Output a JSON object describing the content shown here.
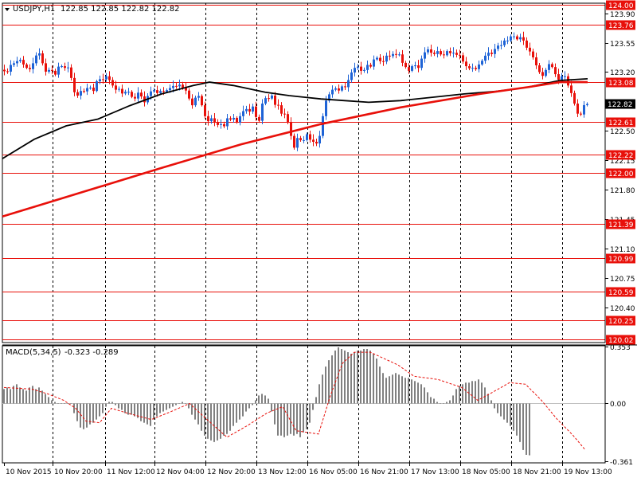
{
  "chart_data": [
    {
      "type": "candlestick",
      "title": "USDJPY,H1",
      "header_values": "122.85 122.85 122.82 122.82",
      "ylim": [
        119.98,
        124.02
      ],
      "y_ticks": [
        {
          "value": 123.9,
          "label": "123.90"
        },
        {
          "value": 123.55,
          "label": "123.55"
        },
        {
          "value": 123.2,
          "label": "123.20"
        },
        {
          "value": 122.5,
          "label": "122.50"
        },
        {
          "value": 122.15,
          "label": "122.15"
        },
        {
          "value": 121.8,
          "label": "121.80"
        },
        {
          "value": 121.45,
          "label": "121.45"
        },
        {
          "value": 121.1,
          "label": "121.10"
        },
        {
          "value": 120.75,
          "label": "120.75"
        },
        {
          "value": 120.4,
          "label": "120.40"
        }
      ],
      "levels": [
        {
          "value": 124.0,
          "label": "124.00"
        },
        {
          "value": 123.76,
          "label": "123.76"
        },
        {
          "value": 123.08,
          "label": "123.08"
        },
        {
          "value": 122.61,
          "label": "122.61"
        },
        {
          "value": 122.22,
          "label": "122.22"
        },
        {
          "value": 122.0,
          "label": "122.00"
        },
        {
          "value": 121.39,
          "label": "121.39"
        },
        {
          "value": 120.99,
          "label": "120.99"
        },
        {
          "value": 120.59,
          "label": "120.59"
        },
        {
          "value": 120.25,
          "label": "120.25"
        },
        {
          "value": 120.02,
          "label": "120.02"
        }
      ],
      "current_price": {
        "value": 122.82,
        "label": "122.82"
      },
      "close_path": [
        [
          0,
          123.25
        ],
        [
          4,
          123.22
        ],
        [
          8,
          123.18
        ],
        [
          12,
          123.28
        ],
        [
          16,
          123.3
        ],
        [
          20,
          123.32
        ],
        [
          24,
          123.36
        ],
        [
          28,
          123.3
        ],
        [
          32,
          123.26
        ],
        [
          36,
          123.22
        ],
        [
          40,
          123.28
        ],
        [
          44,
          123.38
        ],
        [
          48,
          123.45
        ],
        [
          52,
          123.34
        ],
        [
          56,
          123.2
        ],
        [
          60,
          123.22
        ],
        [
          64,
          123.24
        ],
        [
          68,
          123.14
        ],
        [
          72,
          123.26
        ],
        [
          76,
          123.28
        ],
        [
          80,
          123.24
        ],
        [
          84,
          123.28
        ],
        [
          88,
          123.18
        ],
        [
          92,
          122.98
        ],
        [
          96,
          122.9
        ],
        [
          100,
          122.98
        ],
        [
          104,
          122.96
        ],
        [
          108,
          123.0
        ],
        [
          112,
          123.04
        ],
        [
          116,
          122.94
        ],
        [
          120,
          123.08
        ],
        [
          124,
          123.12
        ],
        [
          128,
          123.1
        ],
        [
          132,
          123.16
        ],
        [
          136,
          123.12
        ],
        [
          140,
          123.06
        ],
        [
          144,
          122.98
        ],
        [
          148,
          123.02
        ],
        [
          152,
          122.94
        ],
        [
          156,
          122.96
        ],
        [
          160,
          122.98
        ],
        [
          164,
          122.92
        ],
        [
          168,
          122.86
        ],
        [
          172,
          122.96
        ],
        [
          176,
          122.94
        ],
        [
          180,
          122.82
        ],
        [
          184,
          122.9
        ],
        [
          188,
          122.96
        ],
        [
          192,
          123.0
        ],
        [
          196,
          122.94
        ],
        [
          200,
          122.98
        ],
        [
          204,
          122.96
        ],
        [
          208,
          122.98
        ],
        [
          212,
          123.0
        ],
        [
          216,
          123.04
        ],
        [
          220,
          123.02
        ],
        [
          224,
          123.06
        ],
        [
          228,
          123.02
        ],
        [
          232,
          123.0
        ],
        [
          236,
          122.92
        ],
        [
          240,
          122.78
        ],
        [
          244,
          122.88
        ],
        [
          248,
          122.94
        ],
        [
          252,
          122.84
        ],
        [
          256,
          122.7
        ],
        [
          260,
          122.6
        ],
        [
          264,
          122.66
        ],
        [
          268,
          122.62
        ],
        [
          272,
          122.56
        ],
        [
          276,
          122.6
        ],
        [
          280,
          122.52
        ],
        [
          284,
          122.66
        ],
        [
          288,
          122.62
        ],
        [
          292,
          122.68
        ],
        [
          296,
          122.58
        ],
        [
          300,
          122.66
        ],
        [
          304,
          122.72
        ],
        [
          308,
          122.78
        ],
        [
          312,
          122.7
        ],
        [
          316,
          122.82
        ],
        [
          320,
          122.7
        ],
        [
          324,
          122.56
        ],
        [
          328,
          122.8
        ],
        [
          332,
          122.9
        ],
        [
          336,
          122.86
        ],
        [
          340,
          122.96
        ],
        [
          344,
          122.8
        ],
        [
          348,
          122.84
        ],
        [
          352,
          122.7
        ],
        [
          356,
          122.72
        ],
        [
          360,
          122.64
        ],
        [
          364,
          122.5
        ],
        [
          368,
          122.26
        ],
        [
          372,
          122.42
        ],
        [
          376,
          122.4
        ],
        [
          380,
          122.36
        ],
        [
          384,
          122.48
        ],
        [
          388,
          122.4
        ],
        [
          392,
          122.38
        ],
        [
          396,
          122.34
        ],
        [
          400,
          122.38
        ],
        [
          404,
          122.62
        ],
        [
          408,
          122.84
        ],
        [
          412,
          122.92
        ],
        [
          416,
          122.98
        ],
        [
          420,
          123.02
        ],
        [
          424,
          122.96
        ],
        [
          428,
          123.04
        ],
        [
          432,
          123.0
        ],
        [
          436,
          123.08
        ],
        [
          440,
          123.18
        ],
        [
          444,
          123.24
        ],
        [
          448,
          123.28
        ],
        [
          452,
          123.22
        ],
        [
          456,
          123.2
        ],
        [
          460,
          123.3
        ],
        [
          464,
          123.24
        ],
        [
          468,
          123.34
        ],
        [
          472,
          123.38
        ],
        [
          476,
          123.34
        ],
        [
          480,
          123.3
        ],
        [
          484,
          123.4
        ],
        [
          488,
          123.38
        ],
        [
          492,
          123.42
        ],
        [
          496,
          123.4
        ],
        [
          500,
          123.44
        ],
        [
          504,
          123.32
        ],
        [
          508,
          123.28
        ],
        [
          512,
          123.2
        ],
        [
          516,
          123.26
        ],
        [
          520,
          123.3
        ],
        [
          524,
          123.22
        ],
        [
          528,
          123.34
        ],
        [
          532,
          123.42
        ],
        [
          536,
          123.48
        ],
        [
          540,
          123.44
        ],
        [
          544,
          123.4
        ],
        [
          548,
          123.46
        ],
        [
          552,
          123.42
        ],
        [
          556,
          123.38
        ],
        [
          560,
          123.46
        ],
        [
          564,
          123.42
        ],
        [
          568,
          123.44
        ],
        [
          572,
          123.4
        ],
        [
          576,
          123.42
        ],
        [
          580,
          123.34
        ],
        [
          584,
          123.28
        ],
        [
          588,
          123.24
        ],
        [
          592,
          123.26
        ],
        [
          596,
          123.22
        ],
        [
          600,
          123.28
        ],
        [
          604,
          123.32
        ],
        [
          608,
          123.38
        ],
        [
          612,
          123.44
        ],
        [
          616,
          123.4
        ],
        [
          620,
          123.46
        ],
        [
          624,
          123.52
        ],
        [
          628,
          123.5
        ],
        [
          632,
          123.58
        ],
        [
          636,
          123.56
        ],
        [
          640,
          123.62
        ],
        [
          644,
          123.64
        ],
        [
          648,
          123.58
        ],
        [
          652,
          123.62
        ],
        [
          656,
          123.6
        ],
        [
          660,
          123.5
        ],
        [
          664,
          123.46
        ],
        [
          668,
          123.4
        ],
        [
          672,
          123.3
        ],
        [
          676,
          123.22
        ],
        [
          680,
          123.14
        ],
        [
          684,
          123.2
        ],
        [
          688,
          123.3
        ],
        [
          692,
          123.28
        ],
        [
          696,
          123.2
        ],
        [
          700,
          123.1
        ],
        [
          704,
          123.14
        ],
        [
          708,
          123.18
        ],
        [
          712,
          123.06
        ],
        [
          716,
          122.98
        ],
        [
          720,
          122.86
        ],
        [
          724,
          122.72
        ],
        [
          728,
          122.66
        ],
        [
          732,
          122.8
        ],
        [
          735,
          122.82
        ]
      ],
      "series": [
        {
          "name": "",
          "color": "#000000",
          "points": [
            [
              0,
              122.17
            ],
            [
              40,
              122.4
            ],
            [
              80,
              122.56
            ],
            [
              120,
              122.64
            ],
            [
              160,
              122.8
            ],
            [
              200,
              122.94
            ],
            [
              240,
              123.04
            ],
            [
              260,
              123.08
            ],
            [
              290,
              123.04
            ],
            [
              330,
              122.96
            ],
            [
              360,
              122.92
            ],
            [
              400,
              122.88
            ],
            [
              430,
              122.86
            ],
            [
              460,
              122.84
            ],
            [
              500,
              122.86
            ],
            [
              540,
              122.9
            ],
            [
              580,
              122.94
            ],
            [
              620,
              122.97
            ],
            [
              660,
              123.02
            ],
            [
              700,
              123.1
            ],
            [
              735,
              123.12
            ]
          ]
        },
        {
          "name": "",
          "color": "#e8100a",
          "points": [
            [
              0,
              121.48
            ],
            [
              100,
              121.77
            ],
            [
              200,
              122.06
            ],
            [
              300,
              122.34
            ],
            [
              400,
              122.58
            ],
            [
              500,
              122.78
            ],
            [
              600,
              122.94
            ],
            [
              660,
              123.02
            ],
            [
              700,
              123.08
            ],
            [
              735,
              123.08
            ]
          ]
        }
      ]
    },
    {
      "type": "bar",
      "title": "MACD(5,34,5)",
      "header_values": "-0.323 -0.289",
      "ylim": [
        -0.37,
        0.36
      ],
      "y_ticks": [
        {
          "value": 0.353,
          "label": "0.353"
        },
        {
          "value": 0.0,
          "label": "0.00"
        },
        {
          "value": -0.361,
          "label": "-0.361"
        }
      ],
      "x_start": 5,
      "x_step": 4,
      "values": [
        0.09,
        0.1,
        0.09,
        0.11,
        0.12,
        0.1,
        0.09,
        0.08,
        0.1,
        0.11,
        0.09,
        0.1,
        0.08,
        0.06,
        0.04,
        0.02,
        0.01,
        0.0,
        0.0,
        0.0,
        0.0,
        0.0,
        -0.06,
        -0.11,
        -0.15,
        -0.16,
        -0.15,
        -0.13,
        -0.12,
        -0.1,
        -0.08,
        -0.06,
        -0.02,
        0.01,
        0.01,
        -0.01,
        -0.03,
        -0.04,
        -0.06,
        -0.07,
        -0.07,
        -0.08,
        -0.09,
        -0.11,
        -0.12,
        -0.13,
        -0.14,
        -0.1,
        -0.08,
        -0.06,
        -0.05,
        -0.04,
        -0.03,
        -0.02,
        -0.01,
        0.0,
        0.01,
        0.0,
        -0.03,
        -0.07,
        -0.1,
        -0.13,
        -0.17,
        -0.2,
        -0.22,
        -0.23,
        -0.24,
        -0.23,
        -0.22,
        -0.2,
        -0.19,
        -0.17,
        -0.14,
        -0.12,
        -0.1,
        -0.08,
        -0.05,
        -0.03,
        -0.01,
        0.02,
        0.05,
        0.06,
        0.05,
        0.03,
        -0.05,
        -0.13,
        -0.2,
        -0.2,
        -0.21,
        -0.2,
        -0.19,
        -0.2,
        -0.19,
        -0.21,
        -0.18,
        -0.16,
        -0.12,
        -0.04,
        0.04,
        0.12,
        0.18,
        0.23,
        0.27,
        0.3,
        0.33,
        0.35,
        0.34,
        0.33,
        0.32,
        0.31,
        0.32,
        0.33,
        0.33,
        0.34,
        0.34,
        0.33,
        0.31,
        0.28,
        0.23,
        0.19,
        0.16,
        0.17,
        0.18,
        0.19,
        0.18,
        0.17,
        0.16,
        0.16,
        0.15,
        0.14,
        0.13,
        0.12,
        0.1,
        0.07,
        0.04,
        0.03,
        0.01,
        0.0,
        0.0,
        0.01,
        0.02,
        0.05,
        0.09,
        0.11,
        0.12,
        0.13,
        0.13,
        0.14,
        0.14,
        0.15,
        0.13,
        0.1,
        0.06,
        0.02,
        -0.03,
        -0.06,
        -0.08,
        -0.1,
        -0.12,
        -0.14,
        -0.17,
        -0.2,
        -0.24,
        -0.29,
        -0.32,
        -0.323
      ],
      "signal": [
        [
          5,
          0.1
        ],
        [
          40,
          0.09
        ],
        [
          60,
          0.06
        ],
        [
          80,
          0.02
        ],
        [
          95,
          -0.03
        ],
        [
          108,
          -0.11
        ],
        [
          125,
          -0.12
        ],
        [
          140,
          -0.03
        ],
        [
          160,
          -0.06
        ],
        [
          190,
          -0.1
        ],
        [
          215,
          -0.05
        ],
        [
          238,
          0.0
        ],
        [
          260,
          -0.1
        ],
        [
          285,
          -0.21
        ],
        [
          310,
          -0.14
        ],
        [
          335,
          -0.06
        ],
        [
          355,
          -0.02
        ],
        [
          372,
          -0.17
        ],
        [
          400,
          -0.19
        ],
        [
          415,
          0.05
        ],
        [
          430,
          0.25
        ],
        [
          445,
          0.32
        ],
        [
          465,
          0.32
        ],
        [
          500,
          0.24
        ],
        [
          520,
          0.17
        ],
        [
          550,
          0.15
        ],
        [
          580,
          0.1
        ],
        [
          600,
          0.02
        ],
        [
          615,
          0.06
        ],
        [
          640,
          0.13
        ],
        [
          660,
          0.12
        ],
        [
          680,
          0.02
        ],
        [
          700,
          -0.1
        ],
        [
          720,
          -0.2
        ],
        [
          735,
          -0.289
        ]
      ],
      "x_tick_labels": [
        {
          "x": 5,
          "label": "10 Nov 2015"
        },
        {
          "x": 66,
          "label": "10 Nov 20:00"
        },
        {
          "x": 132,
          "label": "11 Nov 12:00"
        },
        {
          "x": 194,
          "label": "12 Nov 04:00"
        },
        {
          "x": 258,
          "label": "12 Nov 20:00"
        },
        {
          "x": 322,
          "label": "13 Nov 12:00"
        },
        {
          "x": 386,
          "label": "16 Nov 05:00"
        },
        {
          "x": 450,
          "label": "16 Nov 21:00"
        },
        {
          "x": 514,
          "label": "17 Nov 13:00"
        },
        {
          "x": 578,
          "label": "18 Nov 05:00"
        },
        {
          "x": 642,
          "label": "18 Nov 21:00"
        },
        {
          "x": 706,
          "label": "19 Nov 13:00"
        }
      ]
    }
  ],
  "colors": {
    "up_candle": "#1e63d6",
    "down_candle": "#e8100a",
    "level_line": "#e8100a",
    "level_label_bg": "#e8100a",
    "macd_bar": "#808080",
    "signal_line": "#e8100a",
    "grid_dash": "#000000"
  },
  "icons": {
    "dropdown": "triangle-down-icon"
  }
}
